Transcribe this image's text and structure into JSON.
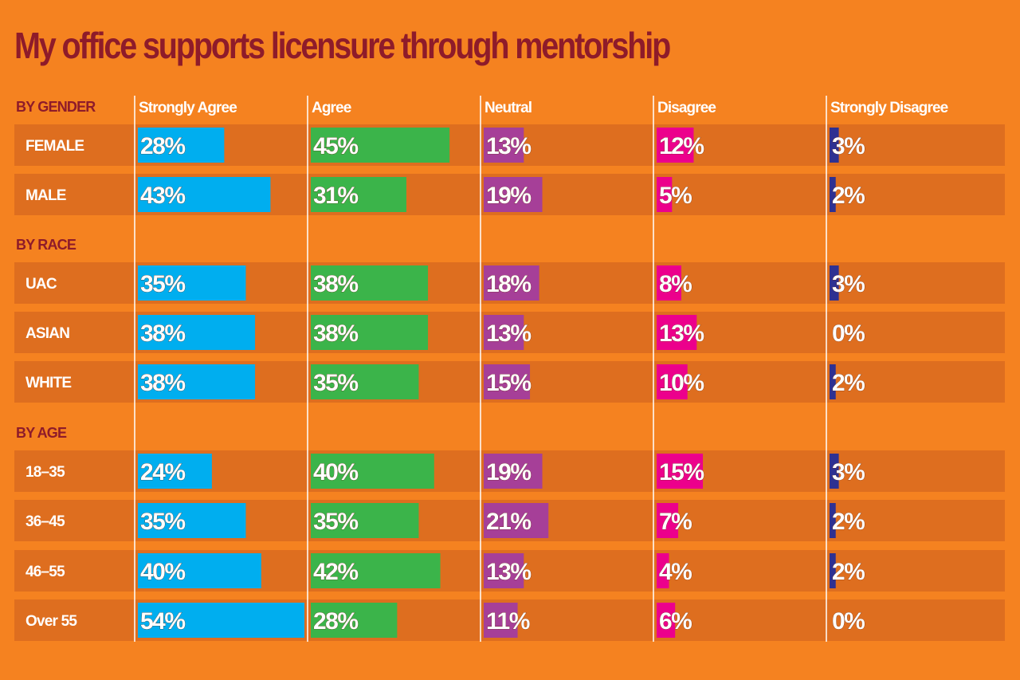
{
  "chart_data": {
    "type": "bar",
    "orientation": "horizontal-grouped-table",
    "title": "My office supports licensure through mentorship",
    "categories": [
      "Strongly Agree",
      "Agree",
      "Neutral",
      "Disagree",
      "Strongly Disagree"
    ],
    "colors": [
      "#00AEEF",
      "#3BB44A",
      "#A63F98",
      "#EC008C",
      "#2E3192"
    ],
    "value_suffix": "%",
    "groups": [
      {
        "label": "BY GENDER",
        "rows": [
          {
            "label": "FEMALE",
            "values": [
              28,
              45,
              13,
              12,
              3
            ]
          },
          {
            "label": "MALE",
            "values": [
              43,
              31,
              19,
              5,
              2
            ]
          }
        ]
      },
      {
        "label": "BY RACE",
        "rows": [
          {
            "label": "UAC",
            "values": [
              35,
              38,
              18,
              8,
              3
            ]
          },
          {
            "label": "ASIAN",
            "values": [
              38,
              38,
              13,
              13,
              0
            ]
          },
          {
            "label": "WHITE",
            "values": [
              38,
              35,
              15,
              10,
              2
            ]
          }
        ]
      },
      {
        "label": "BY AGE",
        "rows": [
          {
            "label": "18–35",
            "values": [
              24,
              40,
              19,
              15,
              3
            ]
          },
          {
            "label": "36–45",
            "values": [
              35,
              35,
              21,
              7,
              2
            ]
          },
          {
            "label": "46–55",
            "values": [
              40,
              42,
              13,
              4,
              2
            ]
          },
          {
            "label": "Over 55",
            "values": [
              54,
              28,
              11,
              6,
              0
            ]
          }
        ]
      }
    ]
  }
}
